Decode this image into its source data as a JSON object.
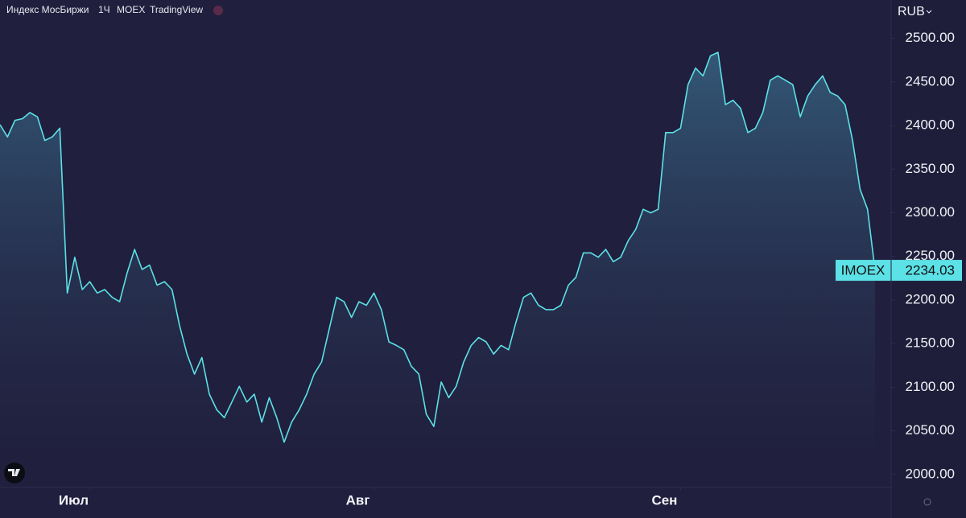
{
  "chart_data": {
    "type": "area",
    "title": "Индекс МосБиржи",
    "interval": "1Ч",
    "exchange": "MOEX",
    "source": "TradingView",
    "currency": "RUB",
    "series": [
      {
        "name": "IMOEX",
        "color": "#5ce1e6",
        "values": [
          2401,
          2387,
          2406,
          2408,
          2415,
          2410,
          2383,
          2387,
          2397,
          2208,
          2249,
          2212,
          2221,
          2208,
          2212,
          2203,
          2198,
          2231,
          2258,
          2235,
          2240,
          2217,
          2221,
          2212,
          2171,
          2138,
          2115,
          2134,
          2092,
          2074,
          2065,
          2083,
          2101,
          2083,
          2092,
          2060,
          2088,
          2065,
          2037,
          2060,
          2074,
          2092,
          2115,
          2129,
          2166,
          2203,
          2198,
          2180,
          2198,
          2194,
          2208,
          2189,
          2152,
          2148,
          2143,
          2124,
          2115,
          2069,
          2055,
          2106,
          2088,
          2101,
          2129,
          2148,
          2157,
          2152,
          2138,
          2148,
          2143,
          2175,
          2203,
          2208,
          2194,
          2189,
          2189,
          2194,
          2217,
          2226,
          2254,
          2254,
          2249,
          2258,
          2244,
          2249,
          2268,
          2281,
          2304,
          2300,
          2304,
          2392,
          2392,
          2397,
          2447,
          2466,
          2457,
          2480,
          2484,
          2424,
          2429,
          2420,
          2392,
          2397,
          2415,
          2452,
          2457,
          2452,
          2447,
          2410,
          2434,
          2447,
          2457,
          2438,
          2434,
          2424,
          2383,
          2327,
          2304,
          2234.03
        ]
      }
    ],
    "xticks": [
      {
        "value": 12,
        "label": "Июл"
      },
      {
        "value": 50,
        "label": "Авг"
      },
      {
        "value": 91,
        "label": "Сен"
      }
    ],
    "ylim": [
      1986,
      2544
    ],
    "yticks": [
      {
        "value": 2000,
        "label": "2000.00"
      },
      {
        "value": 2050,
        "label": "2050.00"
      },
      {
        "value": 2100,
        "label": "2100.00"
      },
      {
        "value": 2150,
        "label": "2150.00"
      },
      {
        "value": 2200,
        "label": "2200.00"
      },
      {
        "value": 2250,
        "label": "2250.00"
      },
      {
        "value": 2300,
        "label": "2300.00"
      },
      {
        "value": 2350,
        "label": "2350.00"
      },
      {
        "value": 2400,
        "label": "2400.00"
      },
      {
        "value": 2450,
        "label": "2450.00"
      },
      {
        "value": 2500,
        "label": "2500.00"
      }
    ]
  }
}
